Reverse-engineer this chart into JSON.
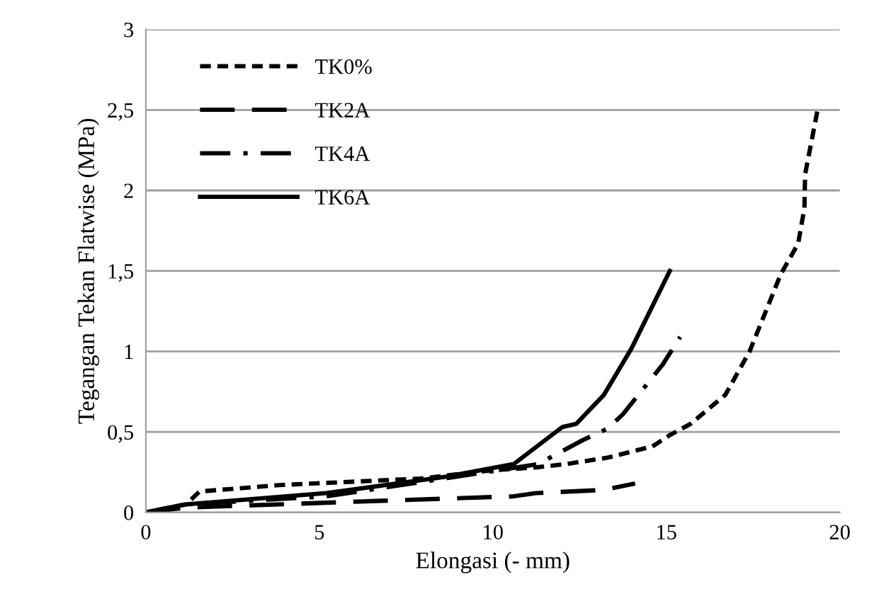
{
  "chart_data": {
    "type": "line",
    "xlabel": "Elongasi (- mm)",
    "ylabel": "Tegangan Tekan Flatwise (MPa)",
    "xlim": [
      0,
      20
    ],
    "xticks": [
      0,
      5,
      10,
      15,
      20
    ],
    "ylim": [
      0,
      3
    ],
    "yticks": [
      0,
      {
        "value": 0.5,
        "label": "0,5"
      },
      1,
      {
        "value": 1.5,
        "label": "1,5"
      },
      2,
      {
        "value": 2.5,
        "label": "2,5"
      },
      3
    ],
    "grid": "y",
    "legend": "top left",
    "marker": "none",
    "series": [
      {
        "name": "TK0%",
        "color": "#000000",
        "line_style": "dotted",
        "x": [
          0,
          1.15,
          1.55,
          3.85,
          7.9,
          9.9,
          11.25,
          12.1,
          13.3,
          14.6,
          15.1,
          15.7,
          16.7,
          17.4,
          18.3,
          18.8,
          18.98,
          19.0,
          19.35
        ],
        "values": [
          0,
          0.05,
          0.13,
          0.17,
          0.21,
          0.26,
          0.28,
          0.3,
          0.34,
          0.41,
          0.48,
          0.55,
          0.73,
          1.0,
          1.48,
          1.67,
          1.89,
          2.1,
          2.49
        ]
      },
      {
        "name": "TK2A",
        "color": "#000000",
        "line_style": "dashed",
        "x": [
          0,
          1.15,
          6.5,
          10.6,
          11.25,
          13.2,
          14.1
        ],
        "values": [
          0,
          0.03,
          0.07,
          0.1,
          0.12,
          0.14,
          0.18
        ]
      },
      {
        "name": "TK4A",
        "color": "#000000",
        "line_style": "dashdot",
        "x": [
          0,
          1.15,
          5.2,
          8.6,
          11.3,
          12.6,
          13.3,
          13.75,
          14.9,
          15.4
        ],
        "values": [
          0,
          0.05,
          0.1,
          0.21,
          0.3,
          0.45,
          0.52,
          0.61,
          0.92,
          1.09
        ]
      },
      {
        "name": "TK6A",
        "color": "#000000",
        "line_style": "solid",
        "x": [
          0,
          1.15,
          5.2,
          8.6,
          10.6,
          12.0,
          12.4,
          13.2,
          14.0,
          15.1
        ],
        "values": [
          0,
          0.05,
          0.12,
          0.22,
          0.3,
          0.53,
          0.55,
          0.73,
          1.02,
          1.5
        ]
      }
    ]
  }
}
